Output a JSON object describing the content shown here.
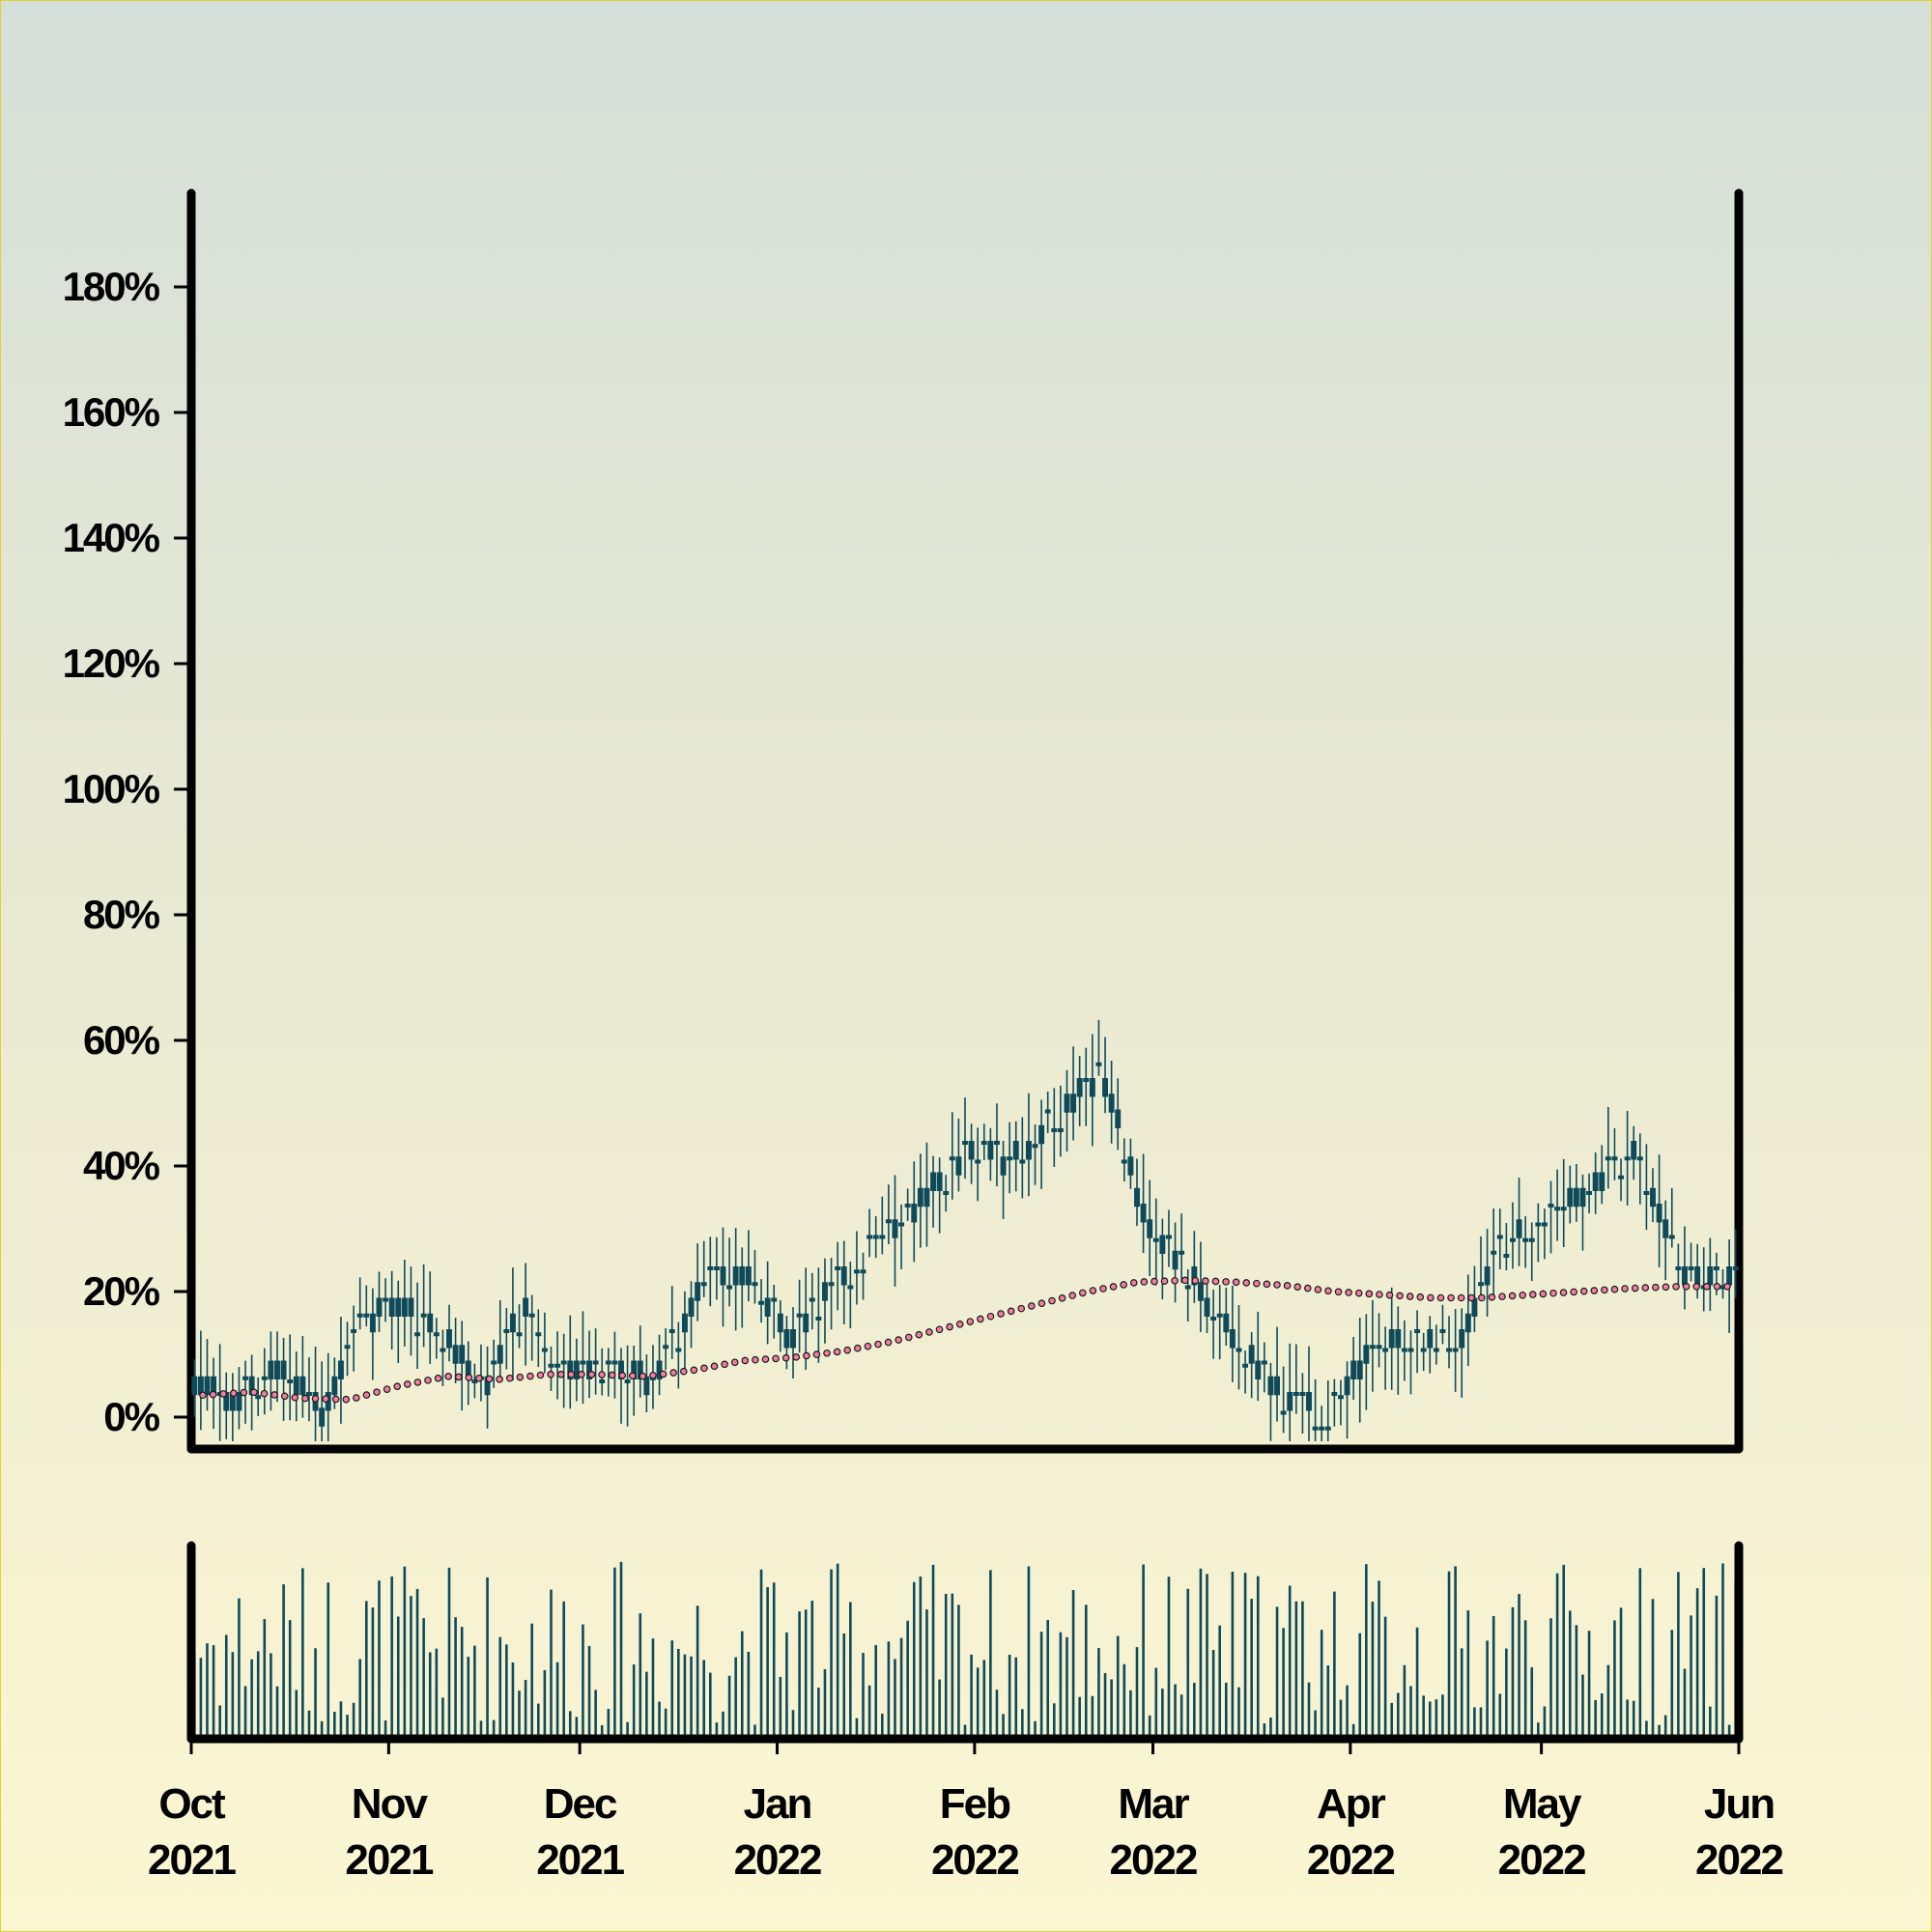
{
  "chart_data": {
    "type": "candlestick",
    "title": "",
    "xlabel": "",
    "ylabel": "",
    "ylim": [
      -5,
      200
    ],
    "y_ticks": [
      {
        "value": 0,
        "label": "0%"
      },
      {
        "value": 20,
        "label": "20%"
      },
      {
        "value": 40,
        "label": "40%"
      },
      {
        "value": 60,
        "label": "60%"
      },
      {
        "value": 80,
        "label": "80%"
      },
      {
        "value": 100,
        "label": "100%"
      },
      {
        "value": 120,
        "label": "120%"
      },
      {
        "value": 140,
        "label": "140%"
      },
      {
        "value": 160,
        "label": "160%"
      },
      {
        "value": 180,
        "label": "180%"
      }
    ],
    "x_range": [
      "2021-10-01",
      "2022-06-01"
    ],
    "x_ticks": [
      {
        "date": "2021-10-01",
        "month": "Oct",
        "year": "2021"
      },
      {
        "date": "2021-11-01",
        "month": "Nov",
        "year": "2021"
      },
      {
        "date": "2021-12-01",
        "month": "Dec",
        "year": "2021"
      },
      {
        "date": "2022-01-01",
        "month": "Jan",
        "year": "2022"
      },
      {
        "date": "2022-02-01",
        "month": "Feb",
        "year": "2022"
      },
      {
        "date": "2022-03-01",
        "month": "Mar",
        "year": "2022"
      },
      {
        "date": "2022-04-01",
        "month": "Apr",
        "year": "2022"
      },
      {
        "date": "2022-05-01",
        "month": "May",
        "year": "2022"
      },
      {
        "date": "2022-06-01",
        "month": "Jun",
        "year": "2022"
      }
    ],
    "price_trend": {
      "dates": [
        "2021-10-02",
        "2021-10-10",
        "2021-10-17",
        "2021-10-24",
        "2021-11-01",
        "2021-11-07",
        "2021-11-14",
        "2021-11-20",
        "2021-11-27",
        "2021-12-01",
        "2021-12-08",
        "2021-12-15",
        "2021-12-22",
        "2021-12-29",
        "2022-01-05",
        "2022-01-12",
        "2022-01-19",
        "2022-01-26",
        "2022-02-02",
        "2022-02-09",
        "2022-02-16",
        "2022-02-20",
        "2022-02-25",
        "2022-03-01",
        "2022-03-04",
        "2022-03-08",
        "2022-03-11",
        "2022-03-15",
        "2022-03-18",
        "2022-03-22",
        "2022-03-25",
        "2022-03-29",
        "2022-04-01",
        "2022-04-04",
        "2022-04-08",
        "2022-04-11",
        "2022-04-15",
        "2022-04-18",
        "2022-04-22",
        "2022-04-25",
        "2022-04-29",
        "2022-05-03",
        "2022-05-06",
        "2022-05-10",
        "2022-05-13",
        "2022-05-16",
        "2022-05-19",
        "2022-05-22",
        "2022-05-25",
        "2022-05-28",
        "2022-05-31"
      ],
      "values": [
        5,
        3,
        7,
        1,
        17,
        17,
        11,
        5,
        19,
        9,
        7,
        6,
        20,
        22,
        12,
        18,
        24,
        28,
        33,
        41,
        40,
        42,
        38,
        42,
        50,
        58,
        61,
        55,
        46,
        36,
        29,
        23,
        18,
        24,
        13,
        10,
        11,
        3,
        2,
        5,
        11,
        13,
        12,
        12,
        14,
        30,
        28,
        32,
        40,
        42,
        22
      ],
      "note_ignore": ""
    },
    "series": [
      {
        "values_by_date": {
          "2021-10-01": 5,
          "2021-10-08": 3,
          "2021-10-15": 8,
          "2021-10-22": 0,
          "2021-10-27": 15,
          "2021-11-03": 18,
          "2021-11-10": 13,
          "2021-11-16": 5,
          "2021-11-22": 17,
          "2021-11-29": 8,
          "2021-12-06": 7,
          "2021-12-13": 6,
          "2021-12-20": 21,
          "2021-12-27": 23,
          "2022-01-03": 13,
          "2022-01-10": 21,
          "2022-01-17": 28,
          "2022-01-24": 35,
          "2022-01-31": 42,
          "2022-02-07": 41,
          "2022-02-14": 48,
          "2022-02-21": 55,
          "2022-02-28": 31,
          "2022-03-07": 22,
          "2022-03-14": 12,
          "2022-03-21": 4,
          "2022-03-28": 0,
          "2022-04-04": 11,
          "2022-04-11": 12,
          "2022-04-18": 12,
          "2022-04-25": 28,
          "2022-05-02": 33,
          "2022-05-09": 37,
          "2022-05-16": 42,
          "2022-05-23": 22,
          "2022-05-31": 22
        }
      }
    ],
    "moving_average_pct": [
      3.5,
      4.0,
      3.0,
      2.8,
      5.0,
      6.5,
      6.0,
      6.8,
      6.8,
      6.5,
      7.5,
      9.0,
      9.5,
      10.5,
      12.0,
      14.0,
      16.0,
      18.0,
      20.0,
      21.5,
      21.8,
      21.5,
      21.0,
      20.0,
      19.5,
      19.0,
      19.0,
      19.5,
      20.0,
      20.5,
      20.8,
      20.8
    ],
    "volume": {
      "relative": true
    },
    "legend": "none",
    "grid": false,
    "colors": {
      "candle": "#0f4a5a",
      "moving_average": "#ee7fa0",
      "axis": "#000000"
    }
  }
}
